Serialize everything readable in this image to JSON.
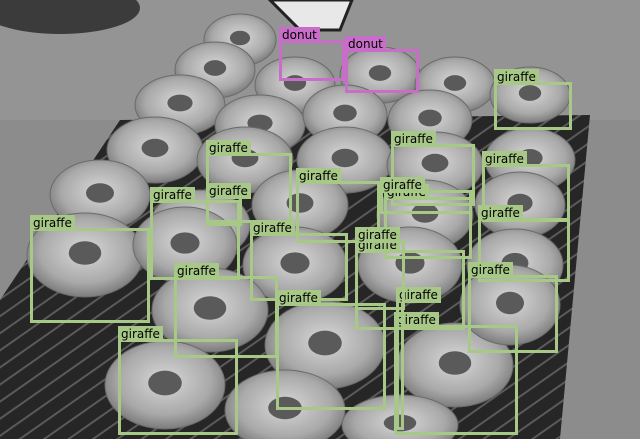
{
  "image": {
    "description_free": true,
    "tone": "grayscale"
  },
  "colors": {
    "donut": "#c86ec8",
    "giraffe": "#a8c888"
  },
  "detections": [
    {
      "label": "donut",
      "class": "donut"
    },
    {
      "label": "donut",
      "class": "donut"
    },
    {
      "label": "giraffe",
      "class": "giraffe"
    },
    {
      "label": "giraffe",
      "class": "giraffe"
    },
    {
      "label": "giraffe",
      "class": "giraffe"
    },
    {
      "label": "giraffe",
      "class": "giraffe"
    },
    {
      "label": "giraffe",
      "class": "giraffe"
    },
    {
      "label": "giraffe",
      "class": "giraffe"
    },
    {
      "label": "giraffe",
      "class": "giraffe"
    },
    {
      "label": "giraffe",
      "class": "giraffe"
    },
    {
      "label": "giraffe",
      "class": "giraffe"
    },
    {
      "label": "giraffe",
      "class": "giraffe"
    },
    {
      "label": "giraffe",
      "class": "giraffe"
    },
    {
      "label": "giraffe",
      "class": "giraffe"
    },
    {
      "label": "giraffe",
      "class": "giraffe"
    },
    {
      "label": "giraffe",
      "class": "giraffe"
    },
    {
      "label": "giraffe",
      "class": "giraffe"
    },
    {
      "label": "giraffe",
      "class": "giraffe"
    },
    {
      "label": "giraffe",
      "class": "giraffe"
    },
    {
      "label": "giraffe",
      "class": "giraffe"
    },
    {
      "label": "giraffe",
      "class": "giraffe"
    },
    {
      "label": "giraffe",
      "class": "giraffe"
    }
  ]
}
